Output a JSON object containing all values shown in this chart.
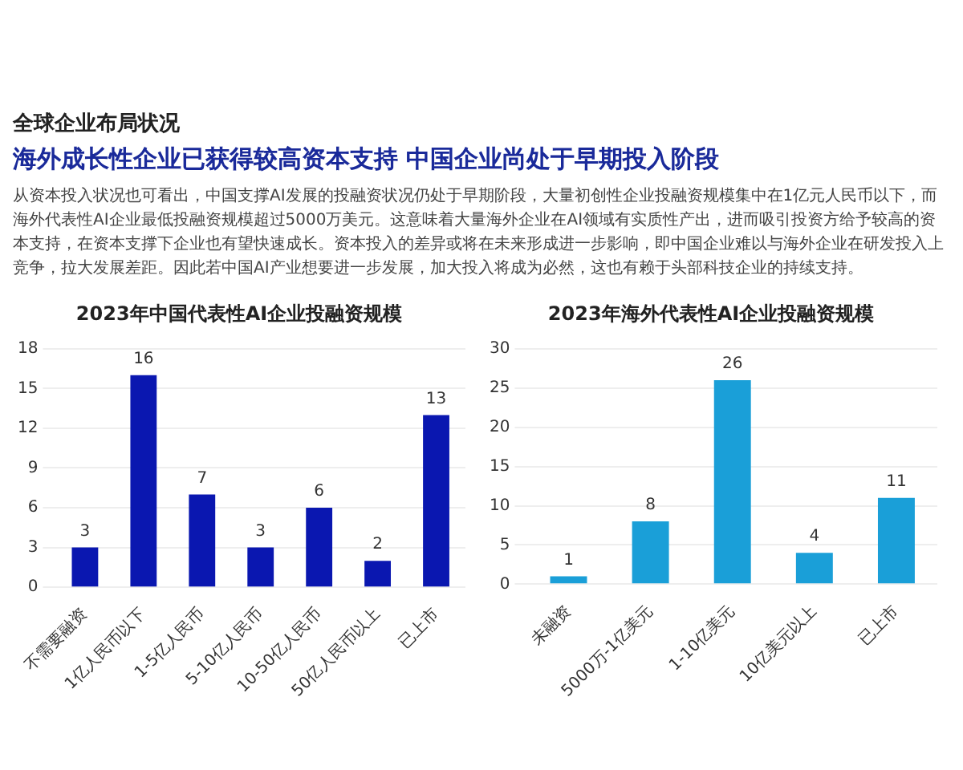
{
  "chart_data": [
    {
      "type": "other",
      "annotations": [
        "全球企业布局状况",
        "海外成长性企业已获得较高资本支持  中国企业尚处于早期投入阶段",
        "从资本投入状况也可看出，中国支撑AI发展的投融资状况仍处于早期阶段，大量初创性企业投融资规模集中在1亿元人民币以下，而海外代表性AI企业最低投融资规模超过5000万美元。这意味着大量海外企业在AI领域有实质性产出，进而吸引投资方给予较高的资本支持，在资本支撑下企业也有望快速成长。资本投入的差异或将在未来形成进一步影响，即中国企业难以与海外企业在研发投入上竞争，拉大发展差距。因此若中国AI产业想要进一步发展，加大投入将成为必然，这也有赖于头部科技企业的持续支持。"
      ]
    },
    {
      "type": "bar",
      "title": "2023年中国代表性AI企业投融资规模",
      "categories": [
        "不需要融资",
        "1亿人民币以下",
        "1-5亿人民币",
        "5-10亿人民币",
        "10-50亿人民币",
        "50亿人民币以上",
        "已上市"
      ],
      "values": [
        3,
        16,
        7,
        3,
        6,
        2,
        13
      ],
      "color": "#0a17b0",
      "ylim": [
        0,
        18
      ],
      "yticks": [
        0,
        3,
        6,
        9,
        12,
        15,
        18
      ],
      "grid": "y",
      "data_labels": true
    },
    {
      "type": "bar",
      "title": "2023年海外代表性AI企业投融资规模",
      "categories": [
        "未融资",
        "5000万-1亿美元",
        "1-10亿美元",
        "10亿美元以上",
        "已上市"
      ],
      "values": [
        1,
        8,
        26,
        4,
        11
      ],
      "color": "#1a9fd8",
      "ylim": [
        0,
        30
      ],
      "yticks": [
        0,
        5,
        10,
        15,
        20,
        25,
        30
      ],
      "grid": "y",
      "data_labels": true
    }
  ]
}
